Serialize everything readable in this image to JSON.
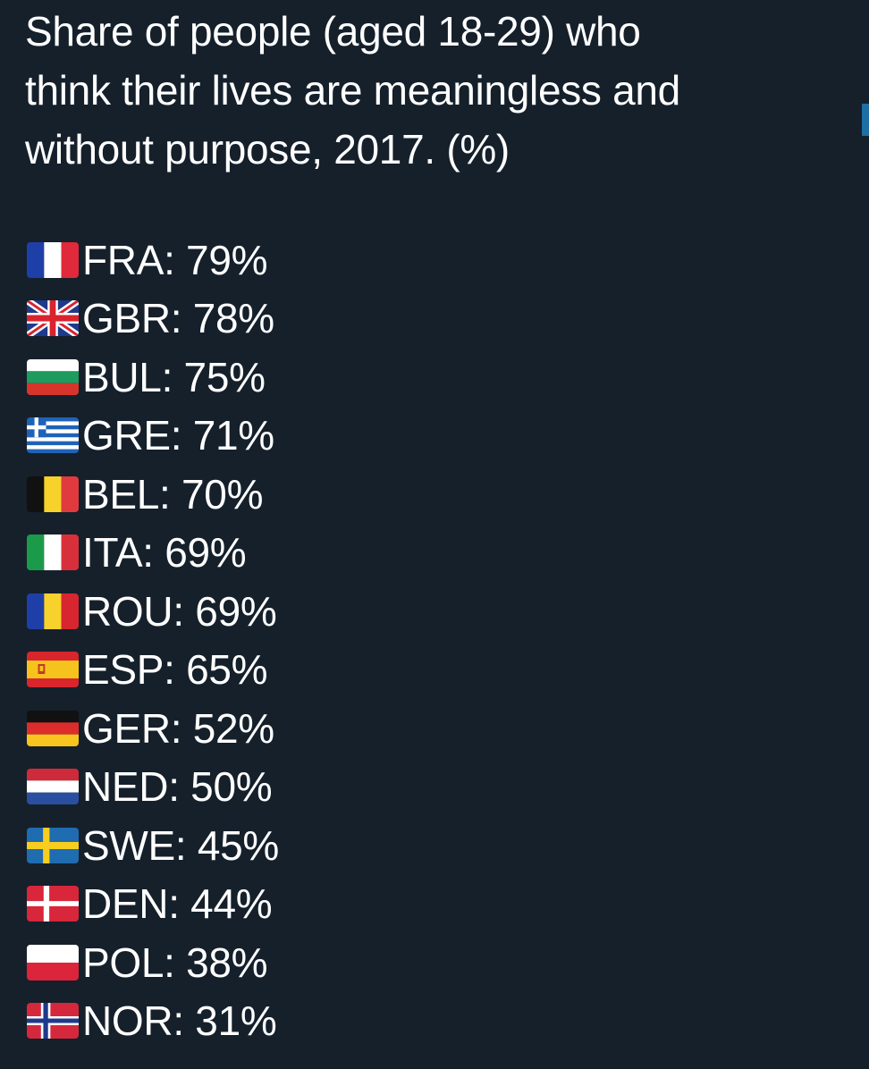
{
  "post": {
    "title_lines": [
      "Share of people (aged 18-29) who",
      "think their lives are meaningless and",
      "without purpose, 2017. (%)"
    ]
  },
  "chart_data": {
    "type": "table",
    "title": "Share of people (aged 18-29) who think their lives are meaningless and without purpose, 2017. (%)",
    "rows": [
      {
        "flag": "france-flag-icon",
        "country": "FRA",
        "value": 79,
        "text": "FRA: 79%"
      },
      {
        "flag": "uk-flag-icon",
        "country": "GBR",
        "value": 78,
        "text": "GBR: 78%"
      },
      {
        "flag": "bulgaria-flag-icon",
        "country": "BUL",
        "value": 75,
        "text": "BUL: 75%"
      },
      {
        "flag": "greece-flag-icon",
        "country": "GRE",
        "value": 71,
        "text": "GRE: 71%"
      },
      {
        "flag": "belgium-flag-icon",
        "country": "BEL",
        "value": 70,
        "text": "BEL: 70%"
      },
      {
        "flag": "italy-flag-icon",
        "country": "ITA",
        "value": 69,
        "text": "ITA: 69%"
      },
      {
        "flag": "romania-flag-icon",
        "country": "ROU",
        "value": 69,
        "text": "ROU: 69%"
      },
      {
        "flag": "spain-flag-icon",
        "country": "ESP",
        "value": 65,
        "text": "ESP: 65%"
      },
      {
        "flag": "germany-flag-icon",
        "country": "GER",
        "value": 52,
        "text": "GER: 52%"
      },
      {
        "flag": "netherlands-flag-icon",
        "country": "NED",
        "value": 50,
        "text": "NED: 50%"
      },
      {
        "flag": "sweden-flag-icon",
        "country": "SWE",
        "value": 45,
        "text": "SWE: 45%"
      },
      {
        "flag": "denmark-flag-icon",
        "country": "DEN",
        "value": 44,
        "text": "DEN: 44%"
      },
      {
        "flag": "poland-flag-icon",
        "country": "POL",
        "value": 38,
        "text": "POL: 38%"
      },
      {
        "flag": "norway-flag-icon",
        "country": "NOR",
        "value": 31,
        "text": "NOR: 31%"
      }
    ]
  },
  "colors": {
    "background": "#15202b",
    "text": "#ffffff",
    "edge_tab": "#1d6fa5"
  }
}
